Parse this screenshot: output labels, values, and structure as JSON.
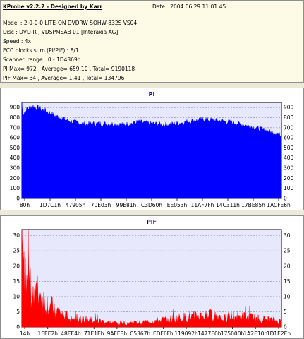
{
  "header": {
    "title": "KProbe v2.2.2 - Designed by Karr",
    "date": "Date : 2004.06.29 11:01:45",
    "model": "Model : 2-0-0-0 LITE-ON DVDRW SOHW-832S  VS04",
    "disc": "Disc : DVD-R , VDSPMSAB 01 [Interaxia AG]",
    "speed": "Speed : 4x",
    "ecc": "ECC blocks sum (PI/PIF) : 8/1",
    "range": "Scanned range : 0 - 1D4369h",
    "pi_stats": "PI Max= 972 , Average= 659,10 , Total= 9190118",
    "pif_stats": "PIF Max= 34 , Average= 1,41 , Total= 134796"
  },
  "colors": {
    "pi": "#0000ff",
    "pif": "#ff0000",
    "plot_bg": "#e8e8fc",
    "grid": "#8080a0"
  },
  "chart_data": [
    {
      "type": "area",
      "title": "PI",
      "x_tick_labels": [
        "80h",
        "1D7C1h",
        "47905h",
        "70E03h",
        "99E81h",
        "C3D60h",
        "EE053h",
        "11AF7Fh",
        "14C311h",
        "17BE85h",
        "1ACFE6h"
      ],
      "ylim": [
        0,
        950
      ],
      "yticks": [
        0,
        100,
        200,
        300,
        400,
        500,
        600,
        700,
        800,
        900
      ],
      "grid": true,
      "x_fraction": [
        0,
        0.02,
        0.04,
        0.06,
        0.08,
        0.1,
        0.13,
        0.16,
        0.2,
        0.25,
        0.3,
        0.35,
        0.4,
        0.45,
        0.5,
        0.55,
        0.6,
        0.65,
        0.7,
        0.75,
        0.8,
        0.85,
        0.9,
        0.95,
        1.0
      ],
      "values": [
        830,
        890,
        920,
        900,
        880,
        860,
        820,
        790,
        760,
        740,
        745,
        740,
        735,
        760,
        745,
        735,
        745,
        770,
        790,
        775,
        760,
        735,
        705,
        670,
        630
      ],
      "peak": 972
    },
    {
      "type": "area",
      "title": "PIF",
      "x_tick_labels": [
        "14h",
        "1EEE2h",
        "48EE4h",
        "71E1Eh",
        "9AFE8h",
        "C5367h",
        "EDF6Fh",
        "119092h",
        "1477E0h",
        "175000h",
        "1A2E10h",
        "1D1E2Eh"
      ],
      "ylim": [
        0,
        32
      ],
      "yticks": [
        0,
        5,
        10,
        15,
        20,
        25,
        30
      ],
      "grid": true,
      "x_fraction": [
        0,
        0.02,
        0.04,
        0.06,
        0.08,
        0.1,
        0.13,
        0.16,
        0.2,
        0.25,
        0.3,
        0.35,
        0.4,
        0.45,
        0.5,
        0.55,
        0.6,
        0.65,
        0.7,
        0.75,
        0.8,
        0.85,
        0.9,
        0.95,
        1.0
      ],
      "values": [
        18,
        17,
        14,
        12,
        10,
        8,
        6,
        4,
        3,
        2.5,
        2,
        1.5,
        1.5,
        1.5,
        2,
        2.5,
        3,
        3.5,
        4,
        4,
        3.5,
        3.5,
        3,
        2.5,
        2
      ],
      "peak": 34
    }
  ]
}
